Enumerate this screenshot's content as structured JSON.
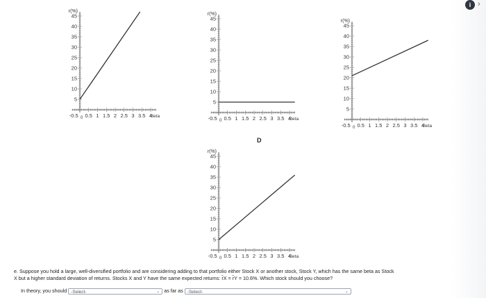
{
  "chart_data": [
    {
      "type": "line",
      "ylabel": "r(%)",
      "xlabel": "Beta",
      "y_ticks": [
        "45",
        "40",
        "35",
        "30",
        "25",
        "20",
        "15",
        "10",
        "5"
      ],
      "x_ticks": [
        "-0.5",
        "0",
        "0.5",
        "1",
        "1.5",
        "2",
        "2.5",
        "3",
        "3.5",
        "4"
      ],
      "xlim": [
        -0.5,
        4.3
      ],
      "ylim": [
        0,
        47
      ],
      "series": [
        {
          "x": [
            0,
            3.4
          ],
          "y": [
            5,
            47
          ]
        }
      ]
    },
    {
      "type": "line",
      "ylabel": "r(%)",
      "xlabel": "Beta",
      "y_ticks": [
        "45",
        "40",
        "35",
        "30",
        "25",
        "20",
        "15",
        "10",
        "5"
      ],
      "x_ticks": [
        "-0.5",
        "0",
        "0.5",
        "1",
        "1.5",
        "2",
        "2.5",
        "3",
        "3.5",
        "4"
      ],
      "xlim": [
        -0.5,
        4.3
      ],
      "ylim": [
        0,
        47
      ],
      "series": [
        {
          "x": [
            0,
            4.3
          ],
          "y": [
            5,
            5
          ]
        }
      ]
    },
    {
      "type": "line",
      "ylabel": "r(%)",
      "xlabel": "Beta",
      "y_ticks": [
        "45",
        "40",
        "35",
        "30",
        "25",
        "20",
        "15",
        "10",
        "5"
      ],
      "x_ticks": [
        "-0.5",
        "0",
        "0.5",
        "1",
        "1.5",
        "2",
        "2.5",
        "3",
        "3.5",
        "4"
      ],
      "xlim": [
        -0.5,
        4.3
      ],
      "ylim": [
        0,
        47
      ],
      "series": [
        {
          "x": [
            0,
            4.3
          ],
          "y": [
            21,
            38
          ]
        }
      ]
    },
    {
      "type": "line",
      "title": "D",
      "ylabel": "r(%)",
      "xlabel": "Beta",
      "y_ticks": [
        "45",
        "40",
        "35",
        "30",
        "25",
        "20",
        "15",
        "10",
        "5"
      ],
      "x_ticks": [
        "-0.5",
        "0",
        "0.5",
        "1",
        "1.5",
        "2",
        "2.5",
        "3",
        "3.5",
        "4"
      ],
      "xlim": [
        -0.5,
        4.3
      ],
      "ylim": [
        0,
        47
      ],
      "series": [
        {
          "x": [
            0,
            4.3
          ],
          "y": [
            5,
            36
          ]
        }
      ]
    }
  ],
  "question": {
    "line1": "e. Suppose you hold a large, well-diversified portfolio and are considering adding to that portfolio either Stock X or another stock, Stock Y, which has the same beta as Stock",
    "line2": "X but a higher standard deviation of returns. Stocks X and Y have the same expected returns: r̂X = r̂Y = 10.6%. Which stock should you choose?",
    "answer_prefix": "In theory, you should",
    "answer_middle": "as far as",
    "select1_value": "-Select-",
    "select2_value": "-Select-"
  },
  "icons": {
    "info": "info-icon",
    "arrow": "arrow-right-icon",
    "info_glyph": "i",
    "arrow_glyph": "›"
  }
}
